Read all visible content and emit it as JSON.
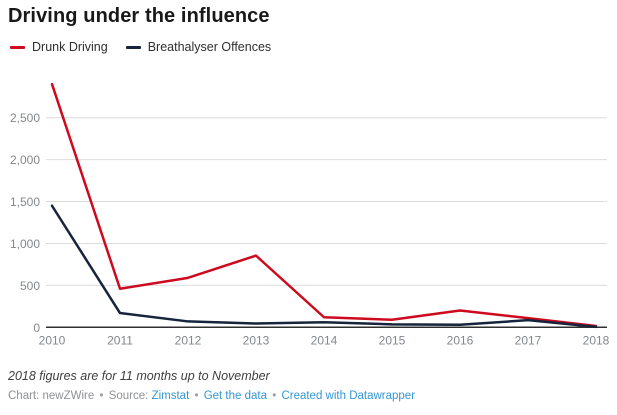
{
  "title": "Driving under the influence",
  "legend": [
    {
      "label": "Drunk Driving",
      "color": "#cd0a1e"
    },
    {
      "label": "Breathalyser Offences",
      "color": "#16243d"
    }
  ],
  "chart_data": {
    "type": "line",
    "x": [
      "2010",
      "2011",
      "2012",
      "2013",
      "2014",
      "2015",
      "2016",
      "2017",
      "2018"
    ],
    "series": [
      {
        "name": "Drunk Driving",
        "color": "#cd0a1e",
        "values": [
          2900,
          460,
          590,
          855,
          120,
          90,
          200,
          110,
          15
        ]
      },
      {
        "name": "Breathalyser Offences",
        "color": "#16243d",
        "values": [
          1450,
          170,
          70,
          45,
          60,
          35,
          30,
          85,
          5
        ]
      }
    ],
    "title": "Driving under the influence",
    "xlabel": "",
    "ylabel": "",
    "ylim": [
      0,
      2950
    ],
    "yticks": [
      0,
      500,
      1000,
      1500,
      2000,
      2500
    ],
    "ytick_labels": [
      "0",
      "500",
      "1,000",
      "1,500",
      "2,000",
      "2,500"
    ],
    "grid": true,
    "legend_position": "top-left",
    "colors": {
      "gridline": "#dcdcdc",
      "axis_line": "#2f2f2f",
      "tick_label": "#83878b"
    }
  },
  "footnote": "2018 figures are for 11 months up to November",
  "attribution": {
    "chart_label": "Chart: newZWire",
    "bullet": "•",
    "source_prefix": "Source:",
    "source_link": "Zimstat",
    "data_link": "Get the data",
    "created_link": "Created with Datawrapper",
    "link_color": "#3496d0"
  }
}
